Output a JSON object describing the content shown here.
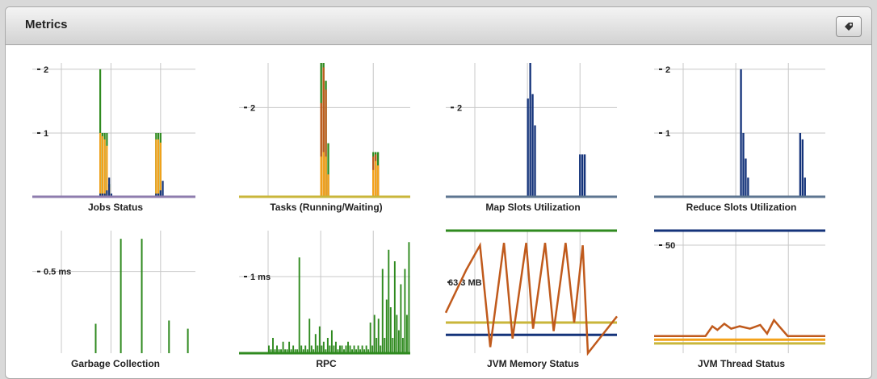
{
  "panel": {
    "title": "Metrics",
    "edit_icon": "tag-icon"
  },
  "colors": {
    "green": "#2f8a1f",
    "orange": "#f4a21b",
    "navy": "#14337a",
    "brown": "#c05a1c",
    "olive": "#c9b63a",
    "grey": "#c8c8c8",
    "purple": "#8e7cae",
    "steel": "#5d7590"
  },
  "chart_data": [
    {
      "type": "bar",
      "title": "Jobs Status",
      "y_ticks": [
        "2",
        "1"
      ],
      "ylim": [
        0,
        2.1
      ],
      "series": [
        {
          "color": "green",
          "values": [
            0,
            0,
            0,
            0,
            0,
            0,
            0,
            0,
            0,
            0,
            0,
            0,
            0,
            0,
            0,
            0,
            0,
            2,
            1,
            1,
            1,
            0.2,
            0,
            0,
            0,
            0,
            0,
            0,
            0,
            0,
            0,
            0,
            0,
            0,
            0,
            0,
            0,
            0,
            0,
            0,
            0,
            0,
            1,
            1,
            1,
            0,
            0,
            0,
            0,
            0,
            0,
            0,
            0,
            0,
            0,
            0,
            0,
            0,
            0,
            0
          ]
        },
        {
          "color": "orange",
          "values": [
            0,
            0,
            0,
            0,
            0,
            0,
            0,
            0,
            0,
            0,
            0,
            0,
            0,
            0,
            0,
            0,
            0,
            1,
            0.95,
            0.9,
            0.8,
            0.15,
            0,
            0,
            0,
            0,
            0,
            0,
            0,
            0,
            0,
            0,
            0,
            0,
            0,
            0,
            0,
            0,
            0,
            0,
            0,
            0,
            0.9,
            0.9,
            0.85,
            0,
            0,
            0,
            0,
            0,
            0,
            0,
            0,
            0,
            0,
            0,
            0,
            0,
            0,
            0
          ]
        },
        {
          "color": "navy",
          "values": [
            0,
            0,
            0,
            0,
            0,
            0,
            0,
            0,
            0,
            0,
            0,
            0,
            0,
            0,
            0,
            0,
            0,
            0.05,
            0.05,
            0.05,
            0.1,
            0.3,
            0.05,
            0,
            0,
            0,
            0,
            0,
            0,
            0,
            0,
            0,
            0,
            0,
            0,
            0,
            0,
            0,
            0,
            0,
            0,
            0,
            0.05,
            0.05,
            0.1,
            0.25,
            0,
            0,
            0,
            0,
            0,
            0,
            0,
            0,
            0,
            0,
            0,
            0,
            0,
            0
          ]
        }
      ],
      "baseline": "purple"
    },
    {
      "type": "bar",
      "title": "Tasks (Running/Waiting)",
      "y_ticks": [
        "2"
      ],
      "ylim": [
        0,
        3
      ],
      "series": [
        {
          "color": "green",
          "values": [
            0,
            0,
            0,
            0,
            0,
            0,
            0,
            0,
            0,
            0,
            0,
            0,
            0,
            0,
            0,
            0,
            0,
            0,
            0,
            0,
            0,
            0,
            3,
            3,
            2.6,
            1.2,
            0,
            0,
            0,
            0,
            0,
            0,
            0,
            0,
            0,
            0,
            0,
            0,
            0,
            0,
            0,
            0,
            0,
            0,
            1,
            1,
            1,
            0,
            0,
            0,
            0,
            0,
            0,
            0,
            0,
            0,
            0,
            0,
            0,
            0
          ]
        },
        {
          "color": "brown",
          "values": [
            0,
            0,
            0,
            0,
            0,
            0,
            0,
            0,
            0,
            0,
            0,
            0,
            0,
            0,
            0,
            0,
            0,
            0,
            0,
            0,
            0,
            0,
            2.1,
            2.9,
            2.4,
            0.5,
            0,
            0,
            0,
            0,
            0,
            0,
            0,
            0,
            0,
            0,
            0,
            0,
            0,
            0,
            0,
            0,
            0,
            0,
            0.9,
            0.95,
            0.7,
            0,
            0,
            0,
            0,
            0,
            0,
            0,
            0,
            0,
            0,
            0,
            0,
            0
          ]
        },
        {
          "color": "orange",
          "values": [
            0,
            0,
            0,
            0,
            0,
            0,
            0,
            0,
            0,
            0,
            0,
            0,
            0,
            0,
            0,
            0,
            0,
            0,
            0,
            0,
            0,
            0,
            0.9,
            1.0,
            0.9,
            0.5,
            0,
            0,
            0,
            0,
            0,
            0,
            0,
            0,
            0,
            0,
            0,
            0,
            0,
            0,
            0,
            0,
            0,
            0,
            0.6,
            0.8,
            0.7,
            0,
            0,
            0,
            0,
            0,
            0,
            0,
            0,
            0,
            0,
            0,
            0,
            0
          ]
        }
      ],
      "baseline": "olive"
    },
    {
      "type": "bar",
      "title": "Map Slots Utilization",
      "y_ticks": [
        "2"
      ],
      "ylim": [
        0,
        3
      ],
      "series": [
        {
          "color": "navy",
          "values": [
            0,
            0,
            0,
            0,
            0,
            0,
            0,
            0,
            0,
            0,
            0,
            0,
            0,
            0,
            0,
            0,
            0,
            0,
            0,
            0,
            0,
            0,
            2.2,
            3,
            2.3,
            1.6,
            0,
            0,
            0,
            0,
            0,
            0,
            0,
            0,
            0,
            0,
            0,
            0,
            0,
            0,
            0,
            0,
            0,
            0,
            0.95,
            0.95,
            0.95,
            0,
            0,
            0,
            0,
            0,
            0,
            0,
            0,
            0,
            0,
            0,
            0,
            0
          ]
        }
      ],
      "baseline": "steel"
    },
    {
      "type": "bar",
      "title": "Reduce Slots Utilization",
      "y_ticks": [
        "2",
        "1"
      ],
      "ylim": [
        0,
        2.1
      ],
      "series": [
        {
          "color": "navy",
          "values": [
            0,
            0,
            0,
            0,
            0,
            0,
            0,
            0,
            0,
            0,
            0,
            0,
            0,
            0,
            0,
            0,
            0,
            0,
            0,
            0,
            0,
            0,
            0,
            0,
            2,
            1,
            0.6,
            0.3,
            0,
            0,
            0,
            0,
            0,
            0,
            0,
            0,
            0,
            0,
            0,
            0,
            0,
            0,
            0,
            0,
            0,
            0,
            0,
            0,
            0,
            1,
            0.9,
            0.3,
            0,
            0,
            0,
            0,
            0,
            0,
            0,
            0
          ]
        }
      ],
      "baseline": "steel"
    },
    {
      "type": "bar",
      "title": "Garbage Collection",
      "y_ticks": [
        "0.5 ms"
      ],
      "ylim": [
        0,
        0.75
      ],
      "series": [
        {
          "color": "green",
          "values": [
            0,
            0,
            0,
            0,
            0,
            0,
            0,
            0,
            0,
            0,
            0,
            0,
            0,
            0,
            0,
            0,
            0.18,
            0,
            0,
            0,
            0,
            0,
            0,
            0,
            0,
            0,
            0,
            0,
            0.7,
            0,
            0,
            0,
            0,
            0,
            0,
            0,
            0,
            0,
            0.7,
            0,
            0,
            0,
            0,
            0,
            0,
            0,
            0,
            0,
            0,
            0,
            0,
            0.2,
            0,
            0,
            0,
            0,
            0,
            0,
            0,
            0,
            0.15,
            0,
            0,
            0
          ]
        }
      ],
      "baseline": "none"
    },
    {
      "type": "bar",
      "title": "RPC",
      "y_ticks": [
        "1 ms"
      ],
      "ylim": [
        0,
        1.6
      ],
      "series": [
        {
          "color": "green",
          "values": [
            0.1,
            0.05,
            0.2,
            0.05,
            0.1,
            0.05,
            0.05,
            0.15,
            0.05,
            0.05,
            0.15,
            0.05,
            0.1,
            0.05,
            0.05,
            1.25,
            0.1,
            0.05,
            0.1,
            0.05,
            0.45,
            0.1,
            0.05,
            0.25,
            0.1,
            0.35,
            0.1,
            0.15,
            0.05,
            0.2,
            0.1,
            0.3,
            0.1,
            0.15,
            0.05,
            0.1,
            0.1,
            0.05,
            0.1,
            0.15,
            0.1,
            0.05,
            0.1,
            0.05,
            0.1,
            0.05,
            0.1,
            0.05,
            0.1,
            0.05,
            0.4,
            0.1,
            0.5,
            0.2,
            0.45,
            0.1,
            1.1,
            0.2,
            0.7,
            1.35,
            0.6,
            0.2,
            1.2,
            0.5,
            0.3,
            0.9,
            0.2,
            1.1,
            0.5,
            1.45
          ]
        }
      ],
      "baseline": "green"
    },
    {
      "type": "line",
      "title": "JVM Memory Status",
      "label": "63.3 MB",
      "sawtooth": [
        [
          0,
          0.33
        ],
        [
          0.12,
          0.68
        ],
        [
          0.2,
          0.88
        ],
        [
          0.26,
          0.05
        ],
        [
          0.34,
          0.9
        ],
        [
          0.39,
          0.12
        ],
        [
          0.47,
          0.9
        ],
        [
          0.51,
          0.2
        ],
        [
          0.58,
          0.9
        ],
        [
          0.63,
          0.18
        ],
        [
          0.7,
          0.9
        ],
        [
          0.75,
          0.25
        ],
        [
          0.8,
          0.88
        ],
        [
          0.83,
          0.0
        ],
        [
          1,
          0.3
        ]
      ],
      "levels": [
        {
          "color": "green",
          "y": 1.0
        },
        {
          "color": "olive",
          "y": 0.25
        },
        {
          "color": "navy",
          "y": 0.15
        }
      ]
    },
    {
      "type": "line",
      "title": "JVM Thread Status",
      "y_ticks": [
        "50"
      ],
      "thread_line": [
        [
          0,
          0.14
        ],
        [
          0.3,
          0.14
        ],
        [
          0.34,
          0.22
        ],
        [
          0.37,
          0.19
        ],
        [
          0.41,
          0.24
        ],
        [
          0.45,
          0.2
        ],
        [
          0.5,
          0.22
        ],
        [
          0.56,
          0.2
        ],
        [
          0.62,
          0.23
        ],
        [
          0.66,
          0.16
        ],
        [
          0.7,
          0.27
        ],
        [
          0.73,
          0.22
        ],
        [
          0.78,
          0.14
        ],
        [
          1,
          0.14
        ]
      ],
      "levels": [
        {
          "color": "navy",
          "y": 1.0
        },
        {
          "color": "orange",
          "y": 0.11
        },
        {
          "color": "olive",
          "y": 0.08
        }
      ]
    }
  ]
}
